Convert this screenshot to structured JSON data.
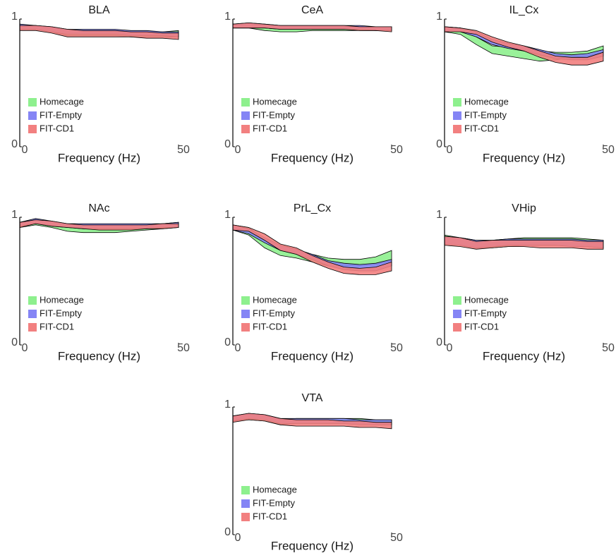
{
  "chart_data": [
    {
      "type": "band",
      "title": "BLA",
      "xlabel": "Frequency (Hz)",
      "xlim": [
        0,
        50
      ],
      "ylim": [
        0,
        1
      ],
      "xticks": [
        0,
        50
      ],
      "yticks": [
        0,
        1
      ],
      "x": [
        0,
        5,
        10,
        15,
        20,
        25,
        30,
        35,
        40,
        45,
        50
      ],
      "series": [
        {
          "name": "Homecage",
          "color": "#8ef08e",
          "lower": [
            0.92,
            0.92,
            0.9,
            0.87,
            0.87,
            0.87,
            0.87,
            0.86,
            0.86,
            0.86,
            0.86
          ],
          "upper": [
            0.95,
            0.95,
            0.93,
            0.91,
            0.91,
            0.91,
            0.91,
            0.9,
            0.9,
            0.9,
            0.91
          ]
        },
        {
          "name": "FIT-Empty",
          "color": "#8585f5",
          "lower": [
            0.92,
            0.92,
            0.9,
            0.88,
            0.88,
            0.88,
            0.88,
            0.87,
            0.87,
            0.87,
            0.86
          ],
          "upper": [
            0.96,
            0.95,
            0.94,
            0.92,
            0.92,
            0.92,
            0.92,
            0.91,
            0.91,
            0.9,
            0.9
          ]
        },
        {
          "name": "FIT-CD1",
          "color": "#f28080",
          "lower": [
            0.91,
            0.91,
            0.89,
            0.86,
            0.86,
            0.86,
            0.86,
            0.86,
            0.85,
            0.85,
            0.84
          ],
          "upper": [
            0.95,
            0.95,
            0.94,
            0.92,
            0.91,
            0.91,
            0.91,
            0.9,
            0.9,
            0.89,
            0.89
          ]
        }
      ]
    },
    {
      "type": "band",
      "title": "CeA",
      "xlabel": "Frequency (Hz)",
      "xlim": [
        0,
        50
      ],
      "ylim": [
        0,
        1
      ],
      "xticks": [
        0,
        50
      ],
      "yticks": [
        0,
        1
      ],
      "x": [
        0,
        5,
        10,
        15,
        20,
        25,
        30,
        35,
        40,
        45,
        50
      ],
      "series": [
        {
          "name": "Homecage",
          "color": "#8ef08e",
          "lower": [
            0.93,
            0.93,
            0.91,
            0.9,
            0.9,
            0.91,
            0.91,
            0.91,
            0.91,
            0.91,
            0.91
          ],
          "upper": [
            0.96,
            0.96,
            0.95,
            0.94,
            0.94,
            0.94,
            0.94,
            0.94,
            0.94,
            0.94,
            0.94
          ]
        },
        {
          "name": "FIT-Empty",
          "color": "#8585f5",
          "lower": [
            0.93,
            0.93,
            0.93,
            0.92,
            0.92,
            0.92,
            0.92,
            0.92,
            0.92,
            0.91,
            0.91
          ],
          "upper": [
            0.96,
            0.97,
            0.96,
            0.95,
            0.95,
            0.95,
            0.95,
            0.95,
            0.95,
            0.94,
            0.94
          ]
        },
        {
          "name": "FIT-CD1",
          "color": "#f28080",
          "lower": [
            0.93,
            0.93,
            0.93,
            0.92,
            0.92,
            0.92,
            0.92,
            0.92,
            0.91,
            0.91,
            0.9
          ],
          "upper": [
            0.96,
            0.97,
            0.96,
            0.95,
            0.95,
            0.95,
            0.95,
            0.95,
            0.94,
            0.94,
            0.94
          ]
        }
      ]
    },
    {
      "type": "band",
      "title": "IL_Cx",
      "xlabel": "Frequency (Hz)",
      "xlim": [
        0,
        50
      ],
      "ylim": [
        0,
        1
      ],
      "xticks": [
        0,
        50
      ],
      "yticks": [
        0,
        1
      ],
      "x": [
        0,
        5,
        10,
        15,
        20,
        25,
        30,
        35,
        40,
        45,
        50
      ],
      "series": [
        {
          "name": "Homecage",
          "color": "#8ef08e",
          "lower": [
            0.9,
            0.88,
            0.8,
            0.73,
            0.71,
            0.69,
            0.67,
            0.68,
            0.7,
            0.71,
            0.74
          ],
          "upper": [
            0.94,
            0.93,
            0.86,
            0.79,
            0.78,
            0.77,
            0.75,
            0.74,
            0.74,
            0.75,
            0.79
          ]
        },
        {
          "name": "FIT-Empty",
          "color": "#8585f5",
          "lower": [
            0.9,
            0.9,
            0.86,
            0.8,
            0.77,
            0.75,
            0.72,
            0.69,
            0.68,
            0.68,
            0.71
          ],
          "upper": [
            0.94,
            0.93,
            0.9,
            0.84,
            0.81,
            0.79,
            0.76,
            0.73,
            0.72,
            0.73,
            0.76
          ]
        },
        {
          "name": "FIT-CD1",
          "color": "#f28080",
          "lower": [
            0.9,
            0.9,
            0.88,
            0.82,
            0.78,
            0.75,
            0.7,
            0.66,
            0.64,
            0.64,
            0.67
          ],
          "upper": [
            0.94,
            0.93,
            0.91,
            0.86,
            0.82,
            0.79,
            0.75,
            0.71,
            0.7,
            0.7,
            0.74
          ]
        }
      ]
    },
    {
      "type": "band",
      "title": "NAc",
      "xlabel": "Frequency (Hz)",
      "xlim": [
        0,
        50
      ],
      "ylim": [
        0,
        1
      ],
      "xticks": [
        0,
        50
      ],
      "yticks": [
        0,
        1
      ],
      "x": [
        0,
        5,
        10,
        15,
        20,
        25,
        30,
        35,
        40,
        45,
        50
      ],
      "series": [
        {
          "name": "Homecage",
          "color": "#8ef08e",
          "lower": [
            0.92,
            0.94,
            0.92,
            0.89,
            0.88,
            0.88,
            0.88,
            0.89,
            0.9,
            0.91,
            0.92
          ],
          "upper": [
            0.96,
            0.98,
            0.96,
            0.94,
            0.93,
            0.93,
            0.93,
            0.93,
            0.94,
            0.95,
            0.96
          ]
        },
        {
          "name": "FIT-Empty",
          "color": "#8585f5",
          "lower": [
            0.93,
            0.95,
            0.93,
            0.92,
            0.91,
            0.91,
            0.91,
            0.91,
            0.91,
            0.92,
            0.92
          ],
          "upper": [
            0.96,
            0.99,
            0.97,
            0.95,
            0.95,
            0.95,
            0.95,
            0.95,
            0.95,
            0.95,
            0.96
          ]
        },
        {
          "name": "FIT-CD1",
          "color": "#f28080",
          "lower": [
            0.92,
            0.95,
            0.93,
            0.92,
            0.91,
            0.9,
            0.9,
            0.9,
            0.91,
            0.91,
            0.92
          ],
          "upper": [
            0.96,
            0.98,
            0.97,
            0.95,
            0.94,
            0.94,
            0.94,
            0.94,
            0.94,
            0.95,
            0.95
          ]
        }
      ]
    },
    {
      "type": "band",
      "title": "PrL_Cx",
      "xlabel": "Frequency (Hz)",
      "xlim": [
        0,
        50
      ],
      "ylim": [
        0,
        1
      ],
      "xticks": [
        0,
        50
      ],
      "yticks": [
        0,
        1
      ],
      "x": [
        0,
        5,
        10,
        15,
        20,
        25,
        30,
        35,
        40,
        45,
        50
      ],
      "series": [
        {
          "name": "Homecage",
          "color": "#8ef08e",
          "lower": [
            0.9,
            0.86,
            0.76,
            0.7,
            0.68,
            0.65,
            0.62,
            0.62,
            0.62,
            0.63,
            0.66
          ],
          "upper": [
            0.94,
            0.92,
            0.82,
            0.75,
            0.73,
            0.71,
            0.68,
            0.67,
            0.67,
            0.69,
            0.74
          ]
        },
        {
          "name": "FIT-Empty",
          "color": "#8585f5",
          "lower": [
            0.9,
            0.87,
            0.8,
            0.74,
            0.71,
            0.67,
            0.62,
            0.59,
            0.58,
            0.58,
            0.62
          ],
          "upper": [
            0.94,
            0.91,
            0.84,
            0.78,
            0.75,
            0.71,
            0.66,
            0.64,
            0.63,
            0.64,
            0.67
          ]
        },
        {
          "name": "FIT-CD1",
          "color": "#f28080",
          "lower": [
            0.9,
            0.89,
            0.82,
            0.74,
            0.71,
            0.65,
            0.6,
            0.56,
            0.55,
            0.55,
            0.58
          ],
          "upper": [
            0.94,
            0.92,
            0.87,
            0.79,
            0.76,
            0.7,
            0.65,
            0.61,
            0.6,
            0.61,
            0.65
          ]
        }
      ]
    },
    {
      "type": "band",
      "title": "VHip",
      "xlabel": "Frequency (Hz)",
      "xlim": [
        0,
        50
      ],
      "ylim": [
        0,
        1
      ],
      "xticks": [
        0,
        50
      ],
      "yticks": [
        0,
        1
      ],
      "x": [
        0,
        5,
        10,
        15,
        20,
        25,
        30,
        35,
        40,
        45,
        50
      ],
      "series": [
        {
          "name": "Homecage",
          "color": "#8ef08e",
          "lower": [
            0.8,
            0.79,
            0.76,
            0.76,
            0.77,
            0.78,
            0.78,
            0.78,
            0.78,
            0.77,
            0.76
          ],
          "upper": [
            0.86,
            0.84,
            0.82,
            0.82,
            0.83,
            0.84,
            0.84,
            0.84,
            0.84,
            0.83,
            0.82
          ]
        },
        {
          "name": "FIT-Empty",
          "color": "#8585f5",
          "lower": [
            0.79,
            0.78,
            0.76,
            0.77,
            0.78,
            0.78,
            0.78,
            0.78,
            0.77,
            0.77,
            0.76
          ],
          "upper": [
            0.85,
            0.84,
            0.82,
            0.82,
            0.83,
            0.83,
            0.83,
            0.83,
            0.83,
            0.82,
            0.82
          ]
        },
        {
          "name": "FIT-CD1",
          "color": "#f28080",
          "lower": [
            0.78,
            0.77,
            0.75,
            0.76,
            0.77,
            0.77,
            0.76,
            0.76,
            0.76,
            0.75,
            0.75
          ],
          "upper": [
            0.85,
            0.84,
            0.81,
            0.82,
            0.82,
            0.82,
            0.82,
            0.82,
            0.82,
            0.81,
            0.81
          ]
        }
      ]
    },
    {
      "type": "band",
      "title": "VTA",
      "xlabel": "Frequency (Hz)",
      "xlim": [
        0,
        50
      ],
      "ylim": [
        0,
        1
      ],
      "xticks": [
        0,
        50
      ],
      "yticks": [
        0,
        1
      ],
      "x": [
        0,
        5,
        10,
        15,
        20,
        25,
        30,
        35,
        40,
        45,
        50
      ],
      "series": [
        {
          "name": "Homecage",
          "color": "#8ef08e",
          "lower": [
            0.89,
            0.9,
            0.89,
            0.86,
            0.87,
            0.87,
            0.87,
            0.87,
            0.87,
            0.87,
            0.86
          ],
          "upper": [
            0.93,
            0.94,
            0.93,
            0.9,
            0.91,
            0.91,
            0.91,
            0.91,
            0.91,
            0.9,
            0.9
          ]
        },
        {
          "name": "FIT-Empty",
          "color": "#8585f5",
          "lower": [
            0.89,
            0.91,
            0.9,
            0.87,
            0.87,
            0.87,
            0.87,
            0.87,
            0.86,
            0.86,
            0.86
          ],
          "upper": [
            0.93,
            0.95,
            0.94,
            0.91,
            0.91,
            0.91,
            0.91,
            0.91,
            0.9,
            0.9,
            0.9
          ]
        },
        {
          "name": "FIT-CD1",
          "color": "#f28080",
          "lower": [
            0.88,
            0.9,
            0.89,
            0.86,
            0.85,
            0.85,
            0.85,
            0.85,
            0.84,
            0.84,
            0.83
          ],
          "upper": [
            0.93,
            0.95,
            0.94,
            0.91,
            0.9,
            0.9,
            0.9,
            0.89,
            0.89,
            0.88,
            0.88
          ]
        }
      ]
    }
  ]
}
